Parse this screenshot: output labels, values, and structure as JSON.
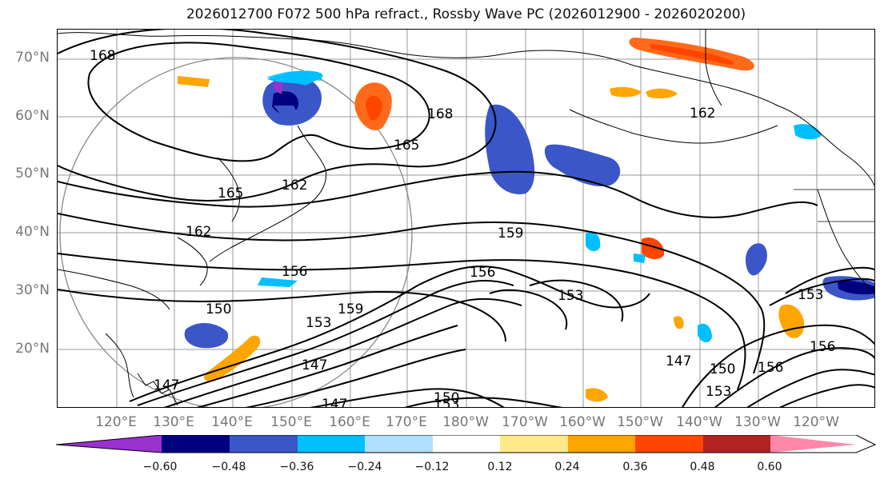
{
  "title": "2026012700 F072 500 hPa refract., Rossby Wave PC (2026012900 - 2026020200)",
  "lat_labels": [
    "70°N",
    "60°N",
    "50°N",
    "40°N",
    "30°N",
    "20°N"
  ],
  "lon_labels": [
    "120°E",
    "130°E",
    "140°E",
    "150°E",
    "160°E",
    "170°E",
    "180°W",
    "170°W",
    "160°W",
    "150°W",
    "140°W",
    "130°W",
    "120°W"
  ],
  "contour_labels": [
    "168",
    "168",
    "165",
    "165",
    "162",
    "162",
    "162",
    "159",
    "156",
    "156",
    "150",
    "153",
    "153",
    "147",
    "147",
    "150",
    "153",
    "150",
    "153",
    "156",
    "156",
    "147",
    "153",
    "159",
    "147"
  ],
  "colorbar": {
    "ticks": [
      "−0.60",
      "−0.48",
      "−0.36",
      "−0.24",
      "−0.12",
      "0.12",
      "0.24",
      "0.36",
      "0.48",
      "0.60"
    ],
    "colors": [
      "#9b30d0",
      "#000080",
      "#3a56c8",
      "#00bfff",
      "#b0e0ff",
      "#ffffff",
      "#ffe98a",
      "#ffa500",
      "#ff4500",
      "#b22222",
      "#ff88aa"
    ]
  }
}
